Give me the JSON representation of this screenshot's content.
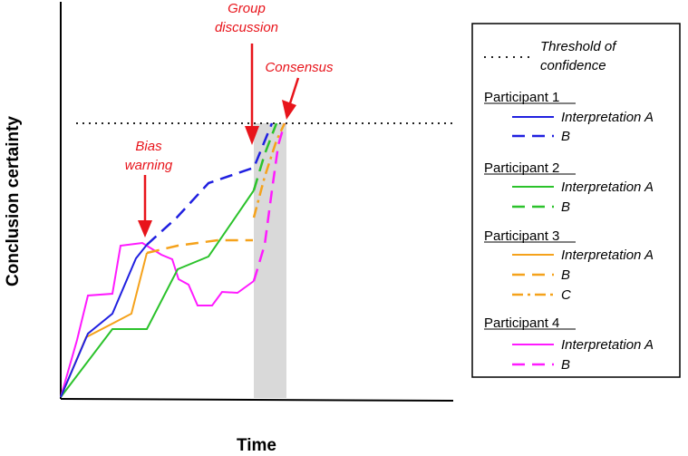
{
  "xlabel": "Time",
  "ylabel": "Conclusion certainty",
  "annotations": {
    "bias_warning": [
      "Bias",
      "warning"
    ],
    "group_discussion": [
      "Group",
      "discussion"
    ],
    "consensus": "Consensus"
  },
  "legend": {
    "threshold": [
      "Threshold of",
      "confidence"
    ],
    "groups": [
      {
        "title": "Participant 1",
        "color": "#2020e0",
        "entries": [
          {
            "label": "Interpretation A",
            "style": "solid"
          },
          {
            "label": "B",
            "style": "dashed"
          }
        ]
      },
      {
        "title": "Participant 2",
        "color": "#2bc22b",
        "entries": [
          {
            "label": "Interpretation A",
            "style": "solid"
          },
          {
            "label": "B",
            "style": "dashed"
          }
        ]
      },
      {
        "title": "Participant 3",
        "color": "#f5a21b",
        "entries": [
          {
            "label": "Interpretation A",
            "style": "solid"
          },
          {
            "label": "B",
            "style": "dashed"
          },
          {
            "label": "C",
            "style": "dashdot"
          }
        ]
      },
      {
        "title": "Participant 4",
        "color": "#ff1aff",
        "entries": [
          {
            "label": "Interpretation A",
            "style": "solid"
          },
          {
            "label": "B",
            "style": "dashed"
          }
        ]
      }
    ]
  },
  "colors": {
    "annotation": "#e8141b",
    "shade": "#d9d9d9",
    "threshold": "#222222"
  }
}
